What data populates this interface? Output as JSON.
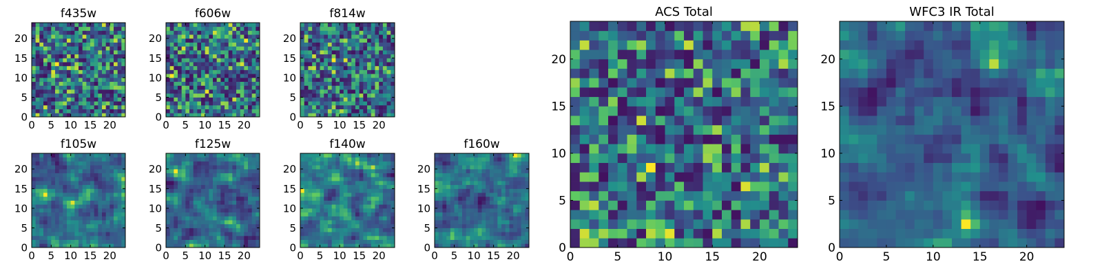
{
  "figure": {
    "colormap": "viridis",
    "colors": [
      "#440154",
      "#3b528b",
      "#21918c",
      "#5ec962",
      "#fde725"
    ]
  },
  "chart_data": [
    {
      "id": "f435w",
      "type": "heatmap",
      "title": "f435w",
      "grid_size": 24,
      "xlim": [
        0,
        24
      ],
      "ylim": [
        0,
        24
      ],
      "xticks": [
        0,
        5,
        10,
        15,
        20
      ],
      "yticks": [
        0,
        5,
        10,
        15,
        20
      ],
      "texture": "fine-noise"
    },
    {
      "id": "f606w",
      "type": "heatmap",
      "title": "f606w",
      "grid_size": 24,
      "xlim": [
        0,
        24
      ],
      "ylim": [
        0,
        24
      ],
      "xticks": [
        0,
        5,
        10,
        15,
        20
      ],
      "yticks": [
        0,
        5,
        10,
        15,
        20
      ],
      "texture": "fine-noise"
    },
    {
      "id": "f814w",
      "type": "heatmap",
      "title": "f814w",
      "grid_size": 24,
      "xlim": [
        0,
        24
      ],
      "ylim": [
        0,
        24
      ],
      "xticks": [
        0,
        5,
        10,
        15,
        20
      ],
      "yticks": [
        0,
        5,
        10,
        15,
        20
      ],
      "texture": "fine-noise"
    },
    {
      "id": "f105w",
      "type": "heatmap",
      "title": "f105w",
      "grid_size": 24,
      "xlim": [
        0,
        24
      ],
      "ylim": [
        0,
        24
      ],
      "xticks": [
        0,
        5,
        10,
        15,
        20
      ],
      "yticks": [
        0,
        5,
        10,
        15,
        20
      ],
      "texture": "smooth-noise"
    },
    {
      "id": "f125w",
      "type": "heatmap",
      "title": "f125w",
      "grid_size": 24,
      "xlim": [
        0,
        24
      ],
      "ylim": [
        0,
        24
      ],
      "xticks": [
        0,
        5,
        10,
        15,
        20
      ],
      "yticks": [
        0,
        5,
        10,
        15,
        20
      ],
      "texture": "smooth-noise"
    },
    {
      "id": "f140w",
      "type": "heatmap",
      "title": "f140w",
      "grid_size": 24,
      "xlim": [
        0,
        24
      ],
      "ylim": [
        0,
        24
      ],
      "xticks": [
        0,
        5,
        10,
        15,
        20
      ],
      "yticks": [
        0,
        5,
        10,
        15,
        20
      ],
      "texture": "smooth-noise"
    },
    {
      "id": "f160w",
      "type": "heatmap",
      "title": "f160w",
      "grid_size": 24,
      "xlim": [
        0,
        24
      ],
      "ylim": [
        0,
        24
      ],
      "xticks": [
        0,
        5,
        10,
        15,
        20
      ],
      "yticks": [
        0,
        5,
        10,
        15,
        20
      ],
      "texture": "smooth-noise"
    },
    {
      "id": "acs-total",
      "type": "heatmap",
      "title": "ACS Total",
      "grid_size": 24,
      "xlim": [
        0,
        24
      ],
      "ylim": [
        0,
        24
      ],
      "xticks": [
        0,
        5,
        10,
        15,
        20
      ],
      "yticks": [
        0,
        5,
        10,
        15,
        20
      ],
      "texture": "fine-noise"
    },
    {
      "id": "wfc3-ir-total",
      "type": "heatmap",
      "title": "WFC3 IR Total",
      "grid_size": 24,
      "xlim": [
        0,
        24
      ],
      "ylim": [
        0,
        24
      ],
      "xticks": [
        0,
        5,
        10,
        15,
        20
      ],
      "yticks": [
        0,
        5,
        10,
        15,
        20
      ],
      "texture": "smooth-noise"
    }
  ]
}
